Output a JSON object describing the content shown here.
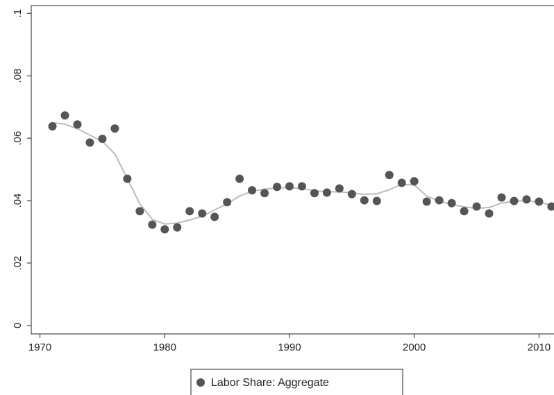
{
  "chart_data": {
    "type": "scatter",
    "x": [
      1971,
      1972,
      1973,
      1974,
      1975,
      1976,
      1977,
      1978,
      1979,
      1980,
      1981,
      1982,
      1983,
      1984,
      1985,
      1986,
      1987,
      1988,
      1989,
      1990,
      1991,
      1992,
      1993,
      1994,
      1995,
      1996,
      1997,
      1998,
      1999,
      2000,
      2001,
      2002,
      2003,
      2004,
      2005,
      2006,
      2007,
      2008,
      2009,
      2010,
      2011
    ],
    "series": [
      {
        "name": "Labor Share: Aggregate",
        "color": "#555555",
        "values": [
          0.0638,
          0.0673,
          0.0644,
          0.0586,
          0.0598,
          0.0631,
          0.047,
          0.0366,
          0.0323,
          0.0308,
          0.0314,
          0.0366,
          0.0359,
          0.0348,
          0.0395,
          0.047,
          0.0433,
          0.0424,
          0.0444,
          0.0446,
          0.0446,
          0.0424,
          0.0426,
          0.0439,
          0.0421,
          0.0401,
          0.0399,
          0.0482,
          0.0457,
          0.0462,
          0.0397,
          0.0401,
          0.0392,
          0.0366,
          0.0381,
          0.0359,
          0.041,
          0.0399,
          0.0404,
          0.0397,
          0.0381
        ]
      },
      {
        "color": "#bbbbbb",
        "style": "line",
        "values": [
          0.065,
          0.0645,
          0.063,
          0.061,
          0.059,
          0.055,
          0.047,
          0.039,
          0.034,
          0.0325,
          0.0328,
          0.0338,
          0.035,
          0.037,
          0.039,
          0.0415,
          0.043,
          0.0437,
          0.044,
          0.0442,
          0.0438,
          0.0432,
          0.0428,
          0.0428,
          0.0425,
          0.042,
          0.0422,
          0.0435,
          0.0452,
          0.045,
          0.0415,
          0.0398,
          0.0388,
          0.038,
          0.0375,
          0.0378,
          0.0392,
          0.0398,
          0.04,
          0.0395,
          0.0385
        ]
      }
    ],
    "xlim": [
      1969.3,
      2011.2
    ],
    "ylim": [
      -0.0027,
      0.1025
    ],
    "xticks": [
      1970,
      1980,
      1990,
      2000,
      2010
    ],
    "yticks": [
      0,
      {
        "value": 0.02,
        "label": ".02"
      },
      {
        "value": 0.04,
        "label": ".04"
      },
      {
        "value": 0.06,
        "label": ".06"
      },
      {
        "value": 0.08,
        "label": ".08"
      },
      {
        "value": 0.1,
        "label": ".1"
      }
    ],
    "legend": "bottom"
  }
}
